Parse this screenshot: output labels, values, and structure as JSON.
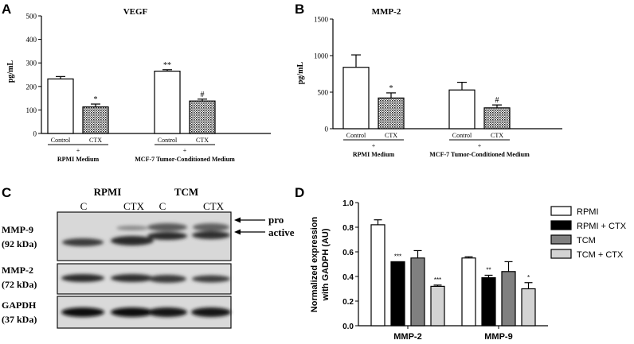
{
  "panels": {
    "A": "A",
    "B": "B",
    "C": "C",
    "D": "D"
  },
  "chart_data": [
    {
      "id": "A",
      "type": "bar",
      "title": "VEGF",
      "ylabel": "pg/mL",
      "ylim": [
        0,
        500
      ],
      "yticks": [
        0,
        100,
        200,
        300,
        400,
        500
      ],
      "categories": [
        "Control",
        "CTX",
        "Control",
        "CTX"
      ],
      "values": [
        232,
        113,
        265,
        138
      ],
      "errors": [
        10,
        12,
        6,
        8
      ],
      "fills": [
        "white",
        "dots",
        "white",
        "dots"
      ],
      "significance": [
        "",
        "*",
        "**",
        "#"
      ],
      "groups": [
        {
          "plus": "+",
          "label": "RPMI Medium"
        },
        {
          "plus": "+",
          "label": "MCF-7 Tumor-Conditioned Medium"
        }
      ]
    },
    {
      "id": "B",
      "type": "bar",
      "title": "MMP-2",
      "ylabel": "pg/mL",
      "ylim": [
        0,
        1500
      ],
      "yticks": [
        0,
        500,
        1000,
        1500
      ],
      "categories": [
        "Control",
        "CTX",
        "Control",
        "CTX"
      ],
      "values": [
        840,
        420,
        530,
        285
      ],
      "errors": [
        170,
        70,
        105,
        40
      ],
      "fills": [
        "white",
        "dots",
        "white",
        "dots"
      ],
      "significance": [
        "",
        "*",
        "",
        "#"
      ],
      "groups": [
        {
          "plus": "+",
          "label": "RPMI Medium"
        },
        {
          "plus": "+",
          "label": "MCF-7 Tumor-Conditioned Medium"
        }
      ]
    },
    {
      "id": "D",
      "type": "bar",
      "ylabel": "Normalized expression\nwith GADPH (AU)",
      "ylabel_lines": [
        "Normalized expression",
        "with GADPH (AU)"
      ],
      "ylim": [
        0,
        1.0
      ],
      "yticks": [
        "0.0",
        "0.2",
        "0.4",
        "0.6",
        "0.8",
        "1.0"
      ],
      "categories": [
        "MMP-2",
        "MMP-9"
      ],
      "series": [
        {
          "name": "RPMI",
          "color": "#ffffff",
          "values": [
            0.82,
            0.55
          ],
          "errors": [
            0.04,
            0.01
          ],
          "sig": [
            "",
            ""
          ]
        },
        {
          "name": "RPMI + CTX",
          "color": "#000000",
          "values": [
            0.52,
            0.39
          ],
          "errors": [
            0.0,
            0.02
          ],
          "sig": [
            "***",
            "**"
          ]
        },
        {
          "name": "TCM",
          "color": "#808080",
          "values": [
            0.55,
            0.44
          ],
          "errors": [
            0.06,
            0.08
          ],
          "sig": [
            "",
            ""
          ]
        },
        {
          "name": "TCM + CTX",
          "color": "#d3d3d3",
          "values": [
            0.32,
            0.3
          ],
          "errors": [
            0.01,
            0.05
          ],
          "sig": [
            "***",
            "*"
          ]
        }
      ],
      "legend": "top-right"
    }
  ],
  "blot": {
    "group_labels": [
      "RPMI",
      "TCM"
    ],
    "lane_labels": [
      "C",
      "CTX",
      "C",
      "CTX"
    ],
    "rows": [
      {
        "name": "MMP-9",
        "kda": "(92 kDa)"
      },
      {
        "name": "MMP-2",
        "kda": "(72 kDa)"
      },
      {
        "name": "GAPDH",
        "kda": "(37 kDa)"
      }
    ],
    "arrows": [
      "pro",
      "active"
    ]
  }
}
